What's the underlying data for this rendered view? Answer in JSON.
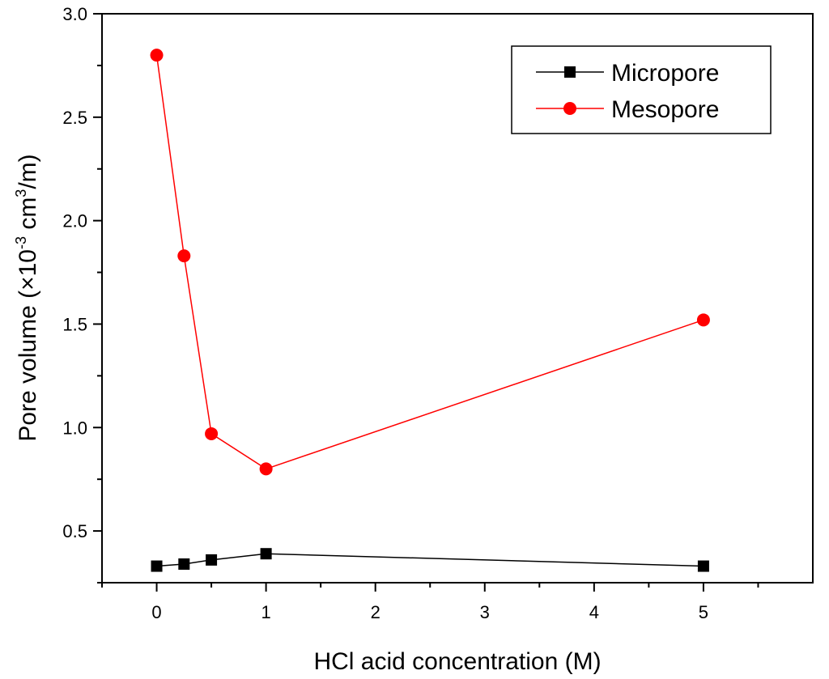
{
  "chart_data": {
    "type": "line",
    "xlabel": "HCl acid concentration (M)",
    "ylabel": {
      "prefix": "Pore volume (×10",
      "exp1": "-3",
      "mid": " cm",
      "exp2": "3",
      "suffix": "/m)"
    },
    "xlim": [
      -0.5,
      6.0
    ],
    "ylim": [
      0.25,
      3.0
    ],
    "x_ticks": [
      0,
      1,
      2,
      3,
      4,
      5
    ],
    "x_tick_labels": [
      "0",
      "1",
      "2",
      "3",
      "4",
      "5"
    ],
    "x_minor_ticks": [
      -0.5,
      0.5,
      1.5,
      2.5,
      3.5,
      4.5,
      5.5
    ],
    "y_ticks": [
      0.5,
      1.0,
      1.5,
      2.0,
      2.5,
      3.0
    ],
    "y_tick_labels": [
      "0.5",
      "1.0",
      "1.5",
      "2.0",
      "2.5",
      "3.0"
    ],
    "y_minor_ticks": [
      0.25,
      0.75,
      1.25,
      1.75,
      2.25,
      2.75
    ],
    "legend_position": "top-right",
    "series": [
      {
        "name": "Micropore",
        "color": "#000000",
        "marker": "square",
        "x": [
          0,
          0.25,
          0.5,
          1,
          5
        ],
        "y": [
          0.33,
          0.34,
          0.36,
          0.39,
          0.33
        ]
      },
      {
        "name": "Mesopore",
        "color": "#ff0000",
        "marker": "circle",
        "x": [
          0,
          0.25,
          0.5,
          1,
          5
        ],
        "y": [
          2.8,
          1.83,
          0.97,
          0.8,
          1.52
        ]
      }
    ]
  }
}
